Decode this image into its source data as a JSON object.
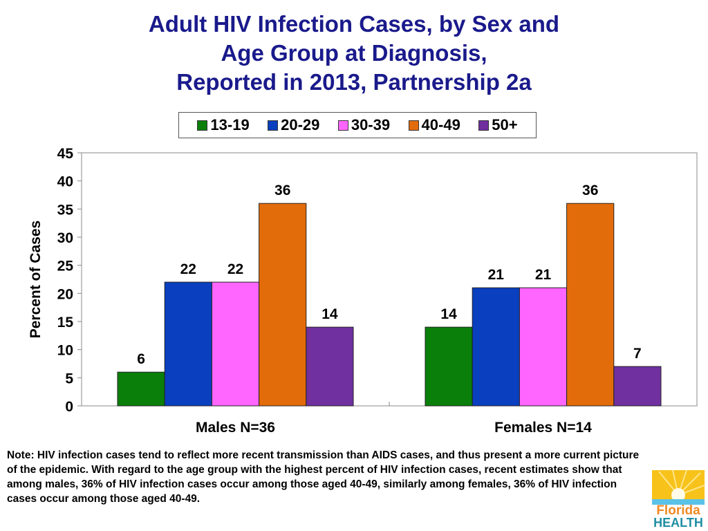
{
  "chart_data": {
    "type": "bar",
    "title": [
      "Adult HIV Infection Cases, by Sex and",
      "Age Group at Diagnosis,",
      "Reported in 2013, Partnership 2a"
    ],
    "ylabel": "Percent of Cases",
    "xlabel": "",
    "ylim": [
      0,
      45
    ],
    "yticks": [
      0,
      5,
      10,
      15,
      20,
      25,
      30,
      35,
      40,
      45
    ],
    "categories": [
      "Males N=36",
      "Females N=14"
    ],
    "legend_position": "top",
    "grid": false,
    "series": [
      {
        "name": "13-19",
        "color": "#0a7f0a",
        "values": [
          6,
          14
        ]
      },
      {
        "name": "20-29",
        "color": "#0a3fbf",
        "values": [
          22,
          21
        ]
      },
      {
        "name": "30-39",
        "color": "#ff66ff",
        "values": [
          22,
          21
        ]
      },
      {
        "name": "40-49",
        "color": "#e36c0a",
        "values": [
          36,
          36
        ]
      },
      {
        "name": "50+",
        "color": "#7030a0",
        "values": [
          14,
          7
        ]
      }
    ]
  },
  "note": "Note:  HIV infection cases tend to reflect more recent transmission than AIDS cases, and thus present a more current picture of the epidemic. With regard to the age group with the highest percent of HIV infection cases, recent estimates show that among males, 36% of HIV infection cases occur among those aged 40-49, similarly among females, 36% of HIV infection cases occur among those aged 40-49.",
  "logo": {
    "line1": "Florida",
    "line2": "HEALTH"
  }
}
